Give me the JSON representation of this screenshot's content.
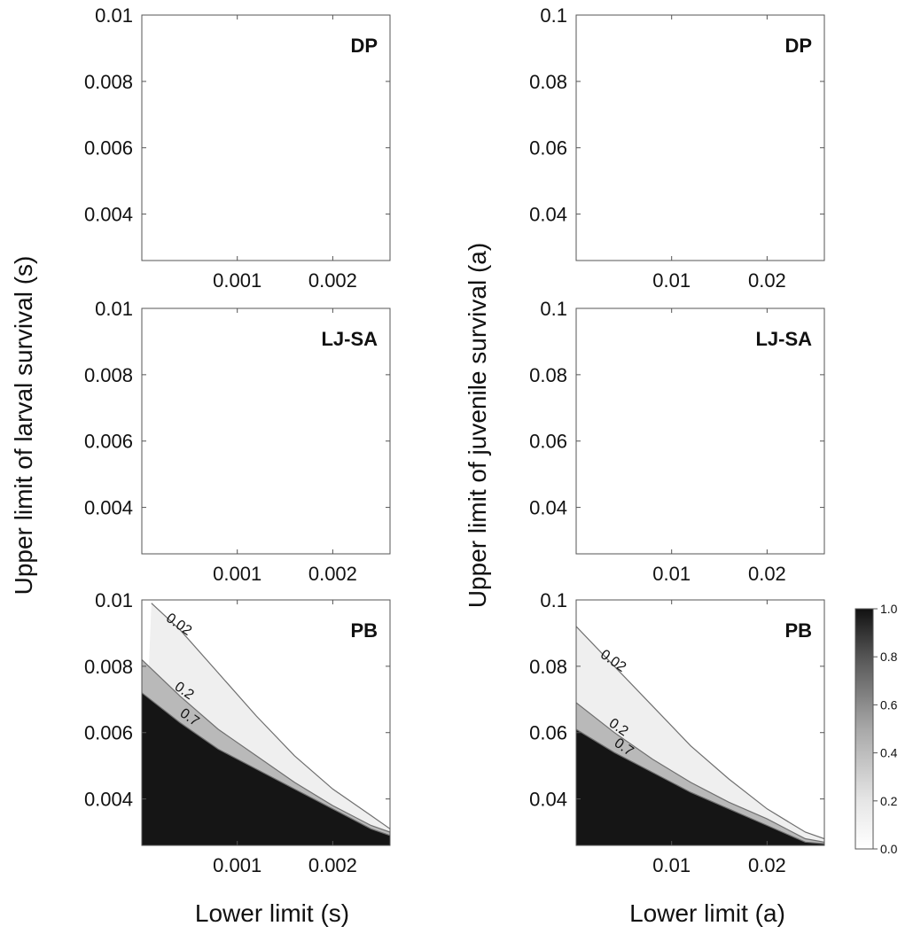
{
  "chart_data": [
    {
      "type": "heatmap",
      "title": "DP",
      "column": "s",
      "xticks": [
        0.001,
        0.002
      ],
      "xtick_labels": [
        "0.001",
        "0.002"
      ],
      "xlim": [
        0.0,
        0.0026
      ],
      "yticks": [
        0.004,
        0.006,
        0.008,
        0.01
      ],
      "ytick_labels": [
        "0.004",
        "0.006",
        "0.008",
        "0.01"
      ],
      "ylim": [
        0.0026,
        0.01
      ],
      "contours": []
    },
    {
      "type": "heatmap",
      "title": "LJ-SA",
      "column": "s",
      "xticks": [
        0.001,
        0.002
      ],
      "xtick_labels": [
        "0.001",
        "0.002"
      ],
      "xlim": [
        0.0,
        0.0026
      ],
      "yticks": [
        0.004,
        0.006,
        0.008,
        0.01
      ],
      "ytick_labels": [
        "0.004",
        "0.006",
        "0.008",
        "0.01"
      ],
      "ylim": [
        0.0026,
        0.01
      ],
      "contours": []
    },
    {
      "type": "heatmap",
      "title": "PB",
      "column": "s",
      "xticks": [
        0.001,
        0.002
      ],
      "xtick_labels": [
        "0.001",
        "0.002"
      ],
      "xlim": [
        0.0,
        0.0026
      ],
      "yticks": [
        0.004,
        0.006,
        0.008,
        0.01
      ],
      "ytick_labels": [
        "0.004",
        "0.006",
        "0.008",
        "0.01"
      ],
      "ylim": [
        0.0026,
        0.01
      ],
      "contours": [
        {
          "level": 0.02,
          "label": "0.02",
          "points": [
            [
              0.0001,
              0.0099
            ],
            [
              0.0004,
              0.0091
            ],
            [
              0.0008,
              0.0078
            ],
            [
              0.0012,
              0.0065
            ],
            [
              0.0016,
              0.0053
            ],
            [
              0.002,
              0.0043
            ],
            [
              0.0024,
              0.0035
            ],
            [
              0.0026,
              0.0031
            ]
          ]
        },
        {
          "level": 0.2,
          "label": "0.2",
          "points": [
            [
              0.0,
              0.0082
            ],
            [
              0.0004,
              0.0071
            ],
            [
              0.0008,
              0.0061
            ],
            [
              0.0012,
              0.0053
            ],
            [
              0.0016,
              0.0045
            ],
            [
              0.002,
              0.0038
            ],
            [
              0.0024,
              0.0032
            ],
            [
              0.0026,
              0.003
            ]
          ]
        },
        {
          "level": 0.7,
          "label": "0.7",
          "points": [
            [
              0.0,
              0.0072
            ],
            [
              0.0004,
              0.0063
            ],
            [
              0.0008,
              0.0055
            ],
            [
              0.0012,
              0.0049
            ],
            [
              0.0016,
              0.0043
            ],
            [
              0.002,
              0.0037
            ],
            [
              0.0024,
              0.0031
            ],
            [
              0.0026,
              0.0029
            ]
          ]
        }
      ]
    },
    {
      "type": "heatmap",
      "title": "DP",
      "column": "a",
      "xticks": [
        0.01,
        0.02
      ],
      "xtick_labels": [
        "0.01",
        "0.02"
      ],
      "xlim": [
        0.0,
        0.026
      ],
      "yticks": [
        0.04,
        0.06,
        0.08,
        0.1
      ],
      "ytick_labels": [
        "0.04",
        "0.06",
        "0.08",
        "0.1"
      ],
      "ylim": [
        0.026,
        0.1
      ],
      "contours": []
    },
    {
      "type": "heatmap",
      "title": "LJ-SA",
      "column": "a",
      "xticks": [
        0.01,
        0.02
      ],
      "xtick_labels": [
        "0.01",
        "0.02"
      ],
      "xlim": [
        0.0,
        0.026
      ],
      "yticks": [
        0.04,
        0.06,
        0.08,
        0.1
      ],
      "ytick_labels": [
        "0.04",
        "0.06",
        "0.08",
        "0.1"
      ],
      "ylim": [
        0.026,
        0.1
      ],
      "contours": []
    },
    {
      "type": "heatmap",
      "title": "PB",
      "column": "a",
      "xticks": [
        0.01,
        0.02
      ],
      "xtick_labels": [
        "0.01",
        "0.02"
      ],
      "xlim": [
        0.0,
        0.026
      ],
      "yticks": [
        0.04,
        0.06,
        0.08,
        0.1
      ],
      "ytick_labels": [
        "0.04",
        "0.06",
        "0.08",
        "0.1"
      ],
      "ylim": [
        0.026,
        0.1
      ],
      "contours": [
        {
          "level": 0.02,
          "label": "0.02",
          "points": [
            [
              0.0,
              0.092
            ],
            [
              0.004,
              0.08
            ],
            [
              0.008,
              0.068
            ],
            [
              0.012,
              0.056
            ],
            [
              0.016,
              0.046
            ],
            [
              0.02,
              0.037
            ],
            [
              0.024,
              0.03
            ],
            [
              0.026,
              0.028
            ]
          ]
        },
        {
          "level": 0.2,
          "label": "0.2",
          "points": [
            [
              0.0,
              0.069
            ],
            [
              0.004,
              0.06
            ],
            [
              0.008,
              0.052
            ],
            [
              0.012,
              0.045
            ],
            [
              0.016,
              0.039
            ],
            [
              0.02,
              0.034
            ],
            [
              0.024,
              0.028
            ],
            [
              0.026,
              0.027
            ]
          ]
        },
        {
          "level": 0.7,
          "label": "0.7",
          "points": [
            [
              0.0,
              0.061
            ],
            [
              0.004,
              0.054
            ],
            [
              0.008,
              0.048
            ],
            [
              0.012,
              0.042
            ],
            [
              0.016,
              0.037
            ],
            [
              0.02,
              0.032
            ],
            [
              0.024,
              0.027
            ],
            [
              0.026,
              0.0265
            ]
          ]
        }
      ]
    }
  ],
  "left_ylabel": "Upper limit of larval survival (s)",
  "right_ylabel": "Upper limit of juvenile survival (a)",
  "left_xlabel": "Lower limit (s)",
  "right_xlabel": "Lower limit (a)",
  "colorbar": {
    "ticks": [
      0.0,
      0.2,
      0.4,
      0.6,
      0.8,
      1.0
    ],
    "tick_labels": [
      "0.0",
      "0.2",
      "0.4",
      "0.6",
      "0.8",
      "1.0"
    ],
    "range": [
      0.0,
      1.0
    ],
    "colors": {
      "low": "#ffffff",
      "high": "#111111"
    }
  }
}
